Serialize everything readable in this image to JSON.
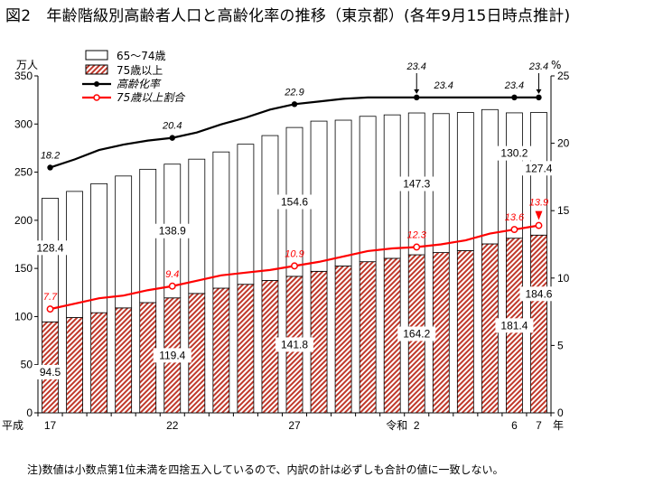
{
  "title": "図2　年齢階級別高齢者人口と高齢化率の推移（東京都）(各年9月15日時点推計)",
  "note": "注)数値は小数点第1位未満を四捨五入しているので、内訳の計は必ずしも合計の値に一致しない。",
  "colors": {
    "old75": "#c0392b",
    "line_aging": "#000000",
    "line_75": "#ff0000",
    "axis": "#000000"
  },
  "chart_data": {
    "type": "bar",
    "title": "年齢階級別高齢者人口と高齢化率の推移（東京都）",
    "left_axis": {
      "unit": "万人",
      "min": 0,
      "max": 350,
      "ticks": [
        "0",
        "50",
        "100",
        "150",
        "200",
        "250",
        "300",
        "350"
      ],
      "tick_values": [
        0,
        50,
        100,
        150,
        200,
        250,
        300,
        350
      ]
    },
    "right_axis": {
      "unit": "%",
      "min": 0,
      "max": 25,
      "ticks": [
        "0",
        "5",
        "10",
        "15",
        "20",
        "25"
      ],
      "tick_values": [
        0,
        5,
        10,
        15,
        20,
        25
      ]
    },
    "x_unit": "年",
    "era_labels": [
      "平成",
      "令和"
    ],
    "x_tick_labels": [
      {
        "index": 0,
        "label": "17"
      },
      {
        "index": 5,
        "label": "22"
      },
      {
        "index": 10,
        "label": "27"
      },
      {
        "index": 15,
        "label": "2"
      },
      {
        "index": 19,
        "label": "6"
      },
      {
        "index": 20,
        "label": "7"
      }
    ],
    "categories": [
      "H17",
      "H18",
      "H19",
      "H20",
      "H21",
      "H22",
      "H23",
      "H24",
      "H25",
      "H26",
      "H27",
      "H28",
      "H29",
      "H30",
      "R1",
      "R2",
      "R3",
      "R4",
      "R5",
      "R6",
      "R7"
    ],
    "series": [
      {
        "name": "65～74歳",
        "kind": "bar-stacked",
        "values": [
          128.4,
          131.0,
          134.0,
          137.0,
          138.5,
          138.9,
          139.5,
          141.5,
          145.5,
          150.5,
          154.6,
          156.0,
          151.5,
          151.0,
          149.0,
          147.3,
          144.3,
          143.5,
          139.5,
          130.2,
          127.4
        ]
      },
      {
        "name": "75歳以上",
        "kind": "bar-stacked",
        "values": [
          94.5,
          99.0,
          104.0,
          109.0,
          114.5,
          119.4,
          124.0,
          129.5,
          133.5,
          137.5,
          141.8,
          147.0,
          152.5,
          157.0,
          160.5,
          164.2,
          166.5,
          168.5,
          175.5,
          181.4,
          184.6
        ]
      },
      {
        "name": "高齢化率",
        "kind": "line",
        "values": [
          18.2,
          18.8,
          19.5,
          19.9,
          20.2,
          20.4,
          20.8,
          21.4,
          21.9,
          22.5,
          22.9,
          23.1,
          23.3,
          23.4,
          23.4,
          23.4,
          23.4,
          23.4,
          23.4,
          23.4,
          23.4
        ]
      },
      {
        "name": "75歳以上割合",
        "kind": "line",
        "values": [
          7.7,
          8.1,
          8.5,
          8.7,
          9.1,
          9.4,
          9.8,
          10.2,
          10.4,
          10.6,
          10.9,
          11.2,
          11.6,
          12.0,
          12.2,
          12.3,
          12.5,
          12.8,
          13.3,
          13.6,
          13.9
        ]
      }
    ],
    "bar_labels_65_74": [
      {
        "index": 0,
        "text": "128.4"
      },
      {
        "index": 5,
        "text": "138.9"
      },
      {
        "index": 10,
        "text": "154.6"
      },
      {
        "index": 15,
        "text": "147.3"
      },
      {
        "index": 19,
        "text": "130.2"
      },
      {
        "index": 20,
        "text": "127.4"
      }
    ],
    "bar_labels_75": [
      {
        "index": 0,
        "text": "94.5"
      },
      {
        "index": 5,
        "text": "119.4"
      },
      {
        "index": 10,
        "text": "141.8"
      },
      {
        "index": 15,
        "text": "164.2"
      },
      {
        "index": 19,
        "text": "181.4"
      },
      {
        "index": 20,
        "text": "184.6"
      }
    ],
    "aging_labels": [
      {
        "index": 0,
        "text": "18.2"
      },
      {
        "index": 5,
        "text": "20.4"
      },
      {
        "index": 10,
        "text": "22.9"
      },
      {
        "index": 15,
        "text": "23.4"
      },
      {
        "index": 19,
        "text": "23.4"
      },
      {
        "index": 20,
        "text": "23.4"
      }
    ],
    "aging_top_labels": [
      {
        "index": 15,
        "text": "23.4"
      },
      {
        "index": 20,
        "text": "23.4"
      }
    ],
    "over75_labels": [
      {
        "index": 0,
        "text": "7.7"
      },
      {
        "index": 5,
        "text": "9.4"
      },
      {
        "index": 10,
        "text": "10.9"
      },
      {
        "index": 15,
        "text": "12.3"
      },
      {
        "index": 19,
        "text": "13.6"
      },
      {
        "index": 20,
        "text": "13.9"
      }
    ],
    "legend": [
      "65～74歳",
      "75歳以上",
      "高齢化率",
      "75歳以上割合"
    ]
  }
}
